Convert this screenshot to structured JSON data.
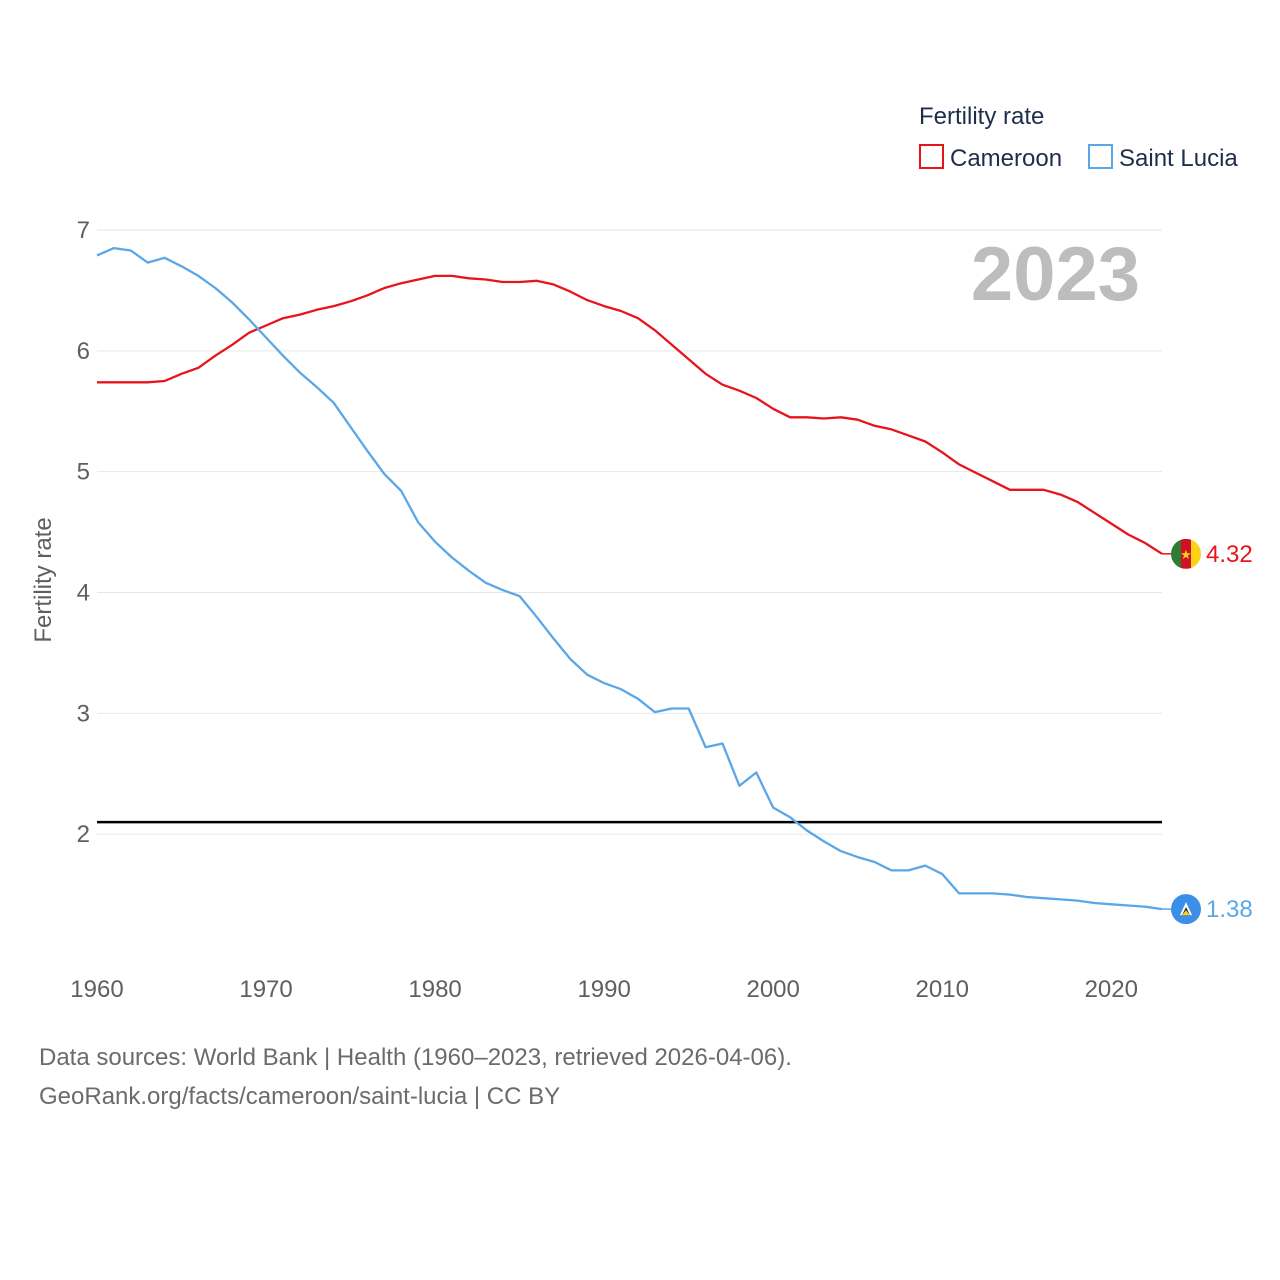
{
  "legend": {
    "title": "Fertility rate"
  },
  "year_label": "2023",
  "source": {
    "line1": "Data sources: World Bank | Health (1960–2023, retrieved 2026-04-06).",
    "line2": "GeoRank.org/facts/cameroon/saint-lucia | CC BY"
  },
  "chart_data": {
    "type": "line",
    "title": "",
    "xlabel": "",
    "ylabel": "Fertility rate",
    "xlim": [
      1960,
      2023
    ],
    "ylim": [
      1,
      7
    ],
    "x_ticks": [
      1960,
      1970,
      1980,
      1990,
      2000,
      2010,
      2020
    ],
    "y_ticks": [
      2,
      3,
      4,
      5,
      6,
      7
    ],
    "reference_line": {
      "y": 2.1,
      "color": "#000000"
    },
    "x": [
      1960,
      1961,
      1962,
      1963,
      1964,
      1965,
      1966,
      1967,
      1968,
      1969,
      1970,
      1971,
      1972,
      1973,
      1974,
      1975,
      1976,
      1977,
      1978,
      1979,
      1980,
      1981,
      1982,
      1983,
      1984,
      1985,
      1986,
      1987,
      1988,
      1989,
      1990,
      1991,
      1992,
      1993,
      1994,
      1995,
      1996,
      1997,
      1998,
      1999,
      2000,
      2001,
      2002,
      2003,
      2004,
      2005,
      2006,
      2007,
      2008,
      2009,
      2010,
      2011,
      2012,
      2013,
      2014,
      2015,
      2016,
      2017,
      2018,
      2019,
      2020,
      2021,
      2022,
      2023
    ],
    "series": [
      {
        "name": "Cameroon",
        "color": "#e8141c",
        "end_label": "4.32",
        "values": [
          5.74,
          5.74,
          5.74,
          5.74,
          5.75,
          5.81,
          5.86,
          5.96,
          6.05,
          6.15,
          6.21,
          6.27,
          6.3,
          6.34,
          6.37,
          6.41,
          6.46,
          6.52,
          6.56,
          6.59,
          6.62,
          6.62,
          6.6,
          6.59,
          6.57,
          6.57,
          6.58,
          6.55,
          6.49,
          6.42,
          6.37,
          6.33,
          6.27,
          6.17,
          6.05,
          5.93,
          5.81,
          5.72,
          5.67,
          5.61,
          5.52,
          5.45,
          5.45,
          5.44,
          5.45,
          5.43,
          5.38,
          5.35,
          5.3,
          5.25,
          5.16,
          5.06,
          4.99,
          4.92,
          4.85,
          4.85,
          4.85,
          4.81,
          4.75,
          4.66,
          4.57,
          4.48,
          4.41,
          4.32
        ]
      },
      {
        "name": "Saint Lucia",
        "color": "#5aa7e8",
        "end_label": "1.38",
        "values": [
          6.79,
          6.85,
          6.83,
          6.73,
          6.77,
          6.7,
          6.62,
          6.52,
          6.4,
          6.26,
          6.11,
          5.96,
          5.82,
          5.7,
          5.57,
          5.37,
          5.17,
          4.98,
          4.84,
          4.58,
          4.42,
          4.29,
          4.18,
          4.08,
          4.02,
          3.97,
          3.8,
          3.62,
          3.45,
          3.32,
          3.25,
          3.2,
          3.12,
          3.01,
          3.04,
          3.04,
          2.72,
          2.75,
          2.4,
          2.51,
          2.22,
          2.14,
          2.03,
          1.94,
          1.86,
          1.81,
          1.77,
          1.7,
          1.7,
          1.74,
          1.67,
          1.51,
          1.51,
          1.51,
          1.5,
          1.48,
          1.47,
          1.46,
          1.45,
          1.43,
          1.42,
          1.41,
          1.4,
          1.38
        ]
      }
    ]
  }
}
